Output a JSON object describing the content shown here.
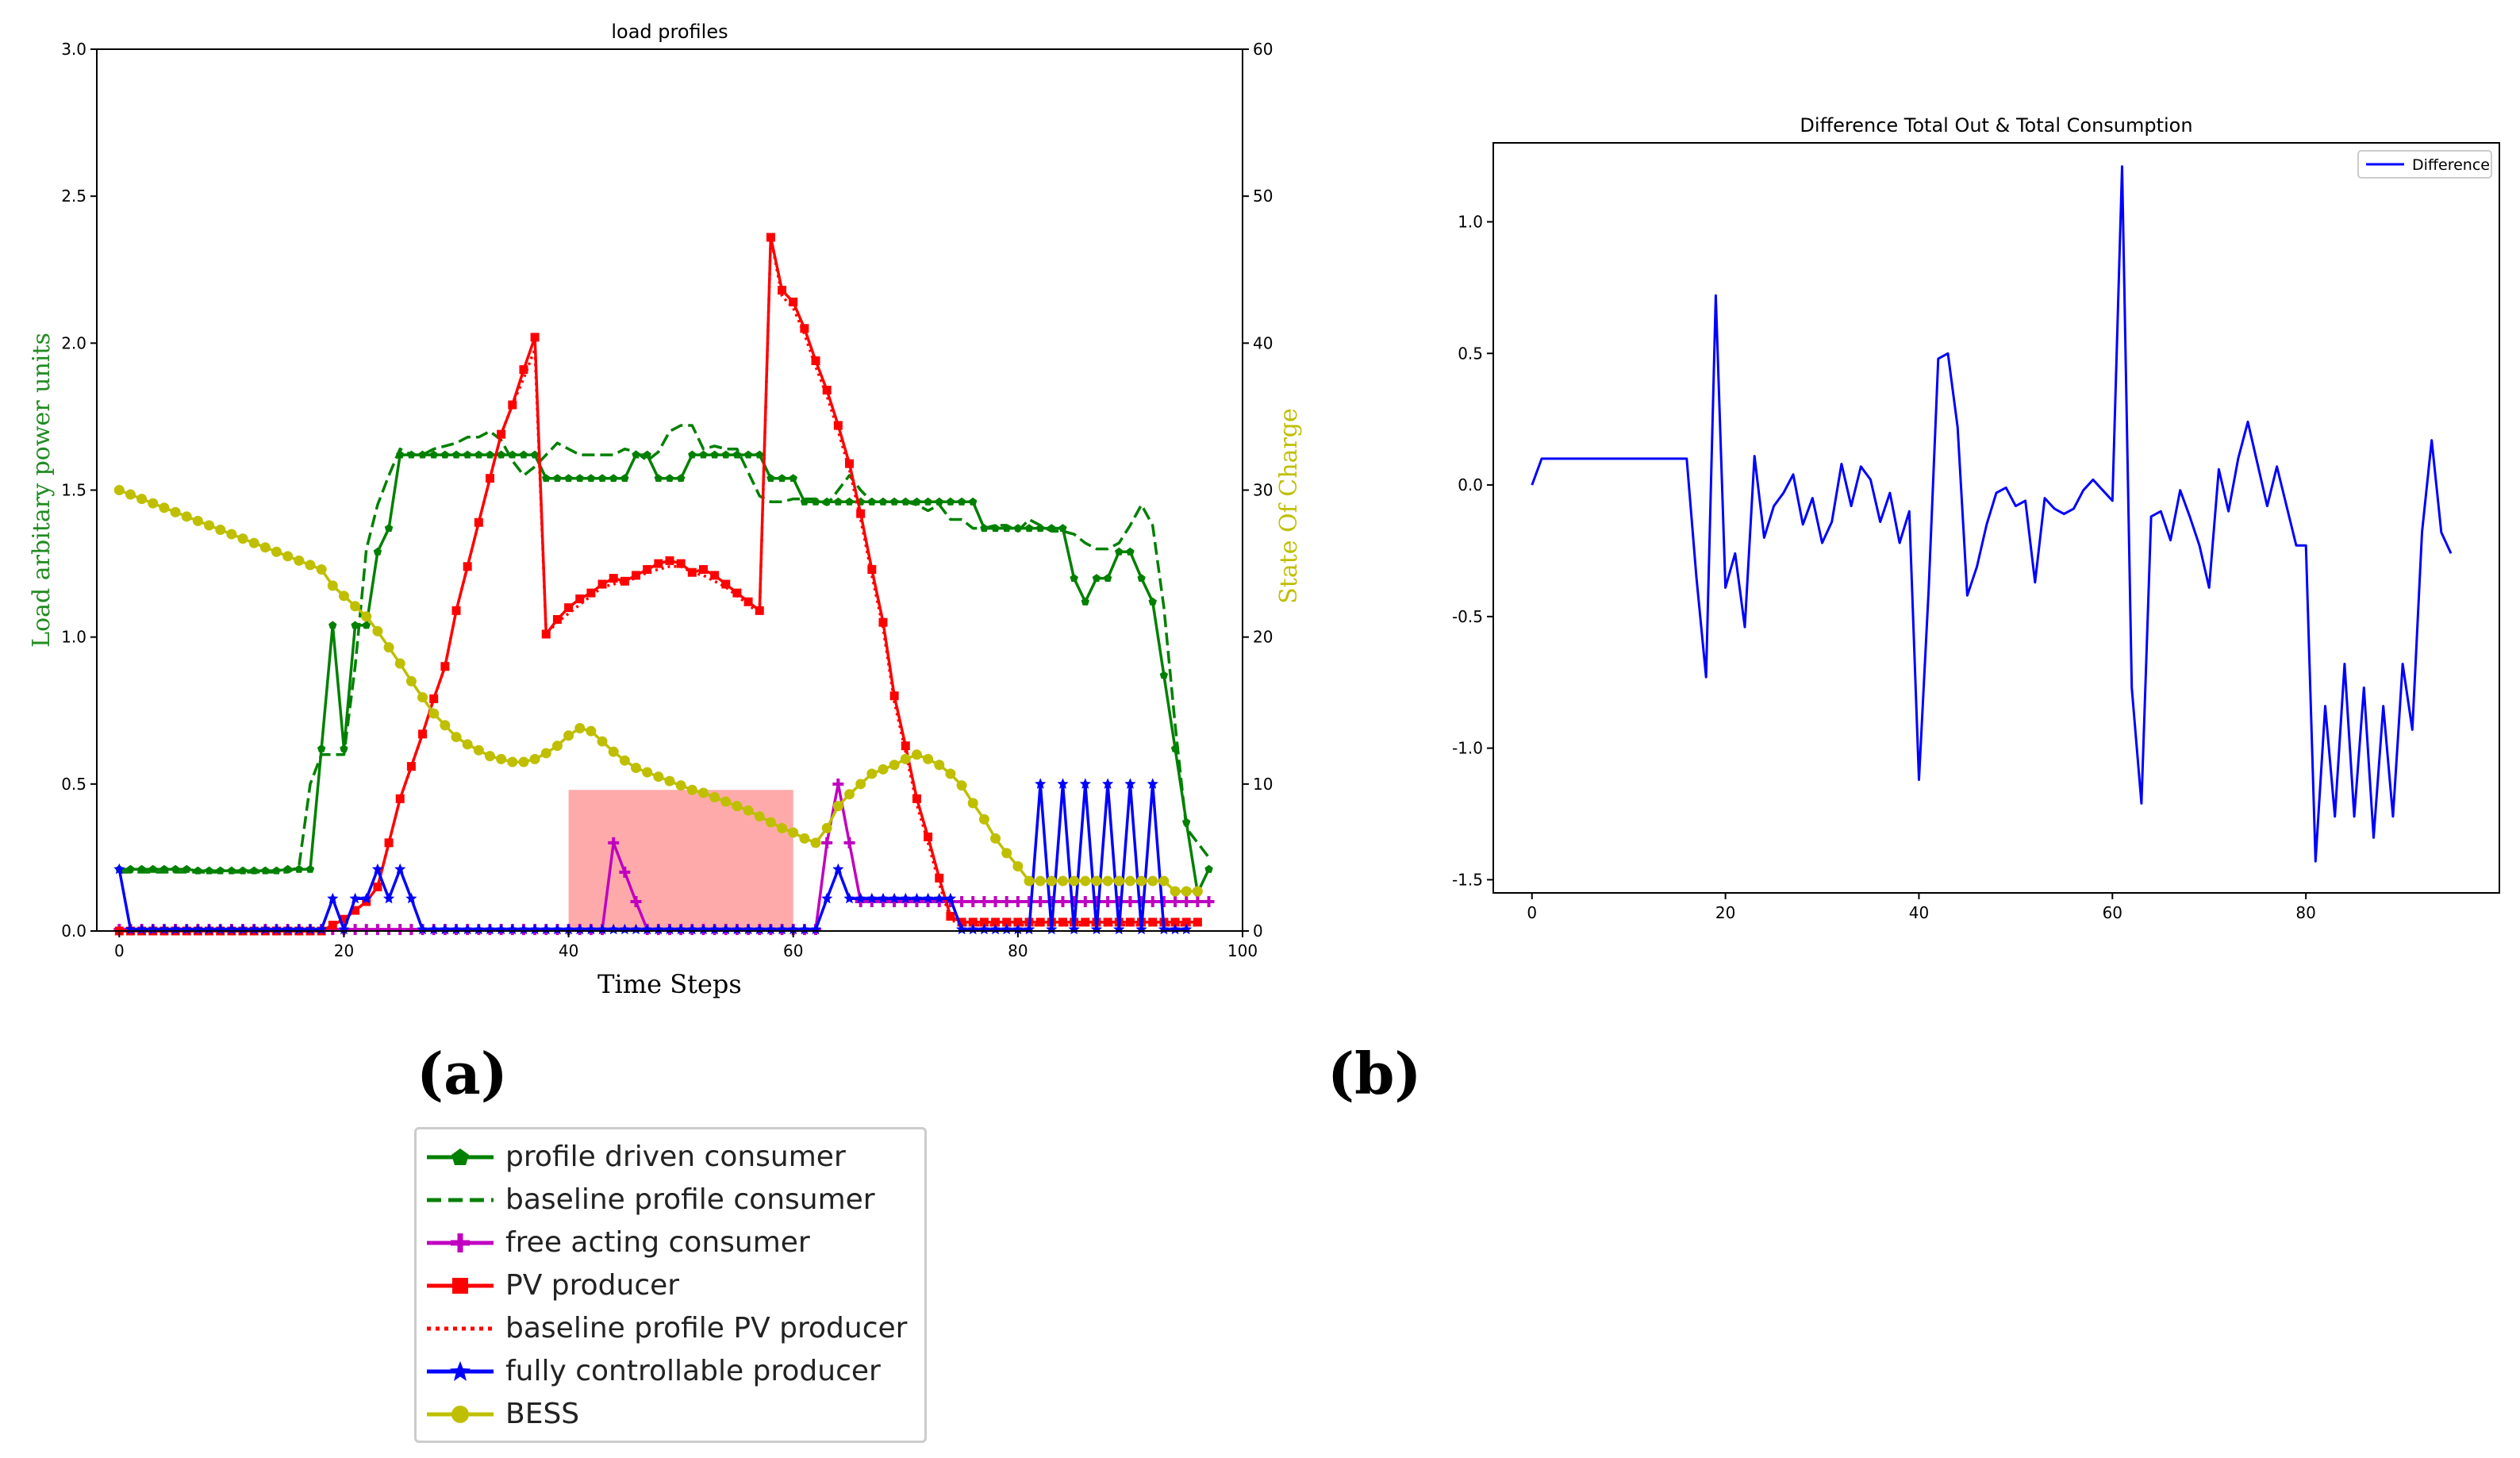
{
  "panels": {
    "a_label": "(a)",
    "b_label": "(b)"
  },
  "chart_data": [
    {
      "type": "line",
      "title": "load profiles",
      "xlabel": "Time Steps",
      "ylabel": "Load arbitary power units",
      "ylabel_right": "State Of Charge",
      "xlim": [
        -2,
        100
      ],
      "ylim": [
        0,
        3.0
      ],
      "ylim_right": [
        0,
        60
      ],
      "x_ticks": [
        0,
        20,
        40,
        60,
        80,
        100
      ],
      "y_ticks": [
        "0.0",
        "0.5",
        "1.0",
        "1.5",
        "2.0",
        "2.5",
        "3.0"
      ],
      "y_right_ticks": [
        0,
        10,
        20,
        30,
        40,
        50,
        60
      ],
      "highlight": {
        "x0": 40,
        "x1": 60,
        "y0": 0,
        "y1": 0.48,
        "color": "#ffaaaa"
      },
      "series": [
        {
          "name": "profile driven consumer",
          "color": "#008000",
          "style": "solid",
          "marker": "pentagon",
          "axis": "left",
          "values": [
            0.21,
            0.21,
            0.21,
            0.21,
            0.21,
            0.21,
            0.21,
            0.205,
            0.205,
            0.205,
            0.205,
            0.205,
            0.205,
            0.205,
            0.205,
            0.21,
            0.21,
            0.21,
            0.62,
            1.04,
            0.62,
            1.04,
            1.04,
            1.29,
            1.37,
            1.62,
            1.62,
            1.62,
            1.62,
            1.62,
            1.62,
            1.62,
            1.62,
            1.62,
            1.62,
            1.62,
            1.62,
            1.62,
            1.54,
            1.54,
            1.54,
            1.54,
            1.54,
            1.54,
            1.54,
            1.54,
            1.62,
            1.62,
            1.54,
            1.54,
            1.54,
            1.62,
            1.62,
            1.62,
            1.62,
            1.62,
            1.62,
            1.62,
            1.54,
            1.54,
            1.54,
            1.46,
            1.46,
            1.46,
            1.46,
            1.46,
            1.46,
            1.46,
            1.46,
            1.46,
            1.46,
            1.46,
            1.46,
            1.46,
            1.46,
            1.46,
            1.46,
            1.37,
            1.37,
            1.37,
            1.37,
            1.37,
            1.37,
            1.37,
            1.37,
            1.2,
            1.12,
            1.2,
            1.2,
            1.29,
            1.29,
            1.2,
            1.12,
            0.87,
            0.62,
            0.37,
            0.13,
            0.21
          ]
        },
        {
          "name": "baseline profile consumer",
          "color": "#008000",
          "style": "dashed",
          "marker": "none",
          "axis": "left",
          "values": [
            0.2,
            0.2,
            0.2,
            0.2,
            0.2,
            0.2,
            0.2,
            0.2,
            0.2,
            0.2,
            0.2,
            0.2,
            0.2,
            0.2,
            0.2,
            0.2,
            0.22,
            0.5,
            0.6,
            0.6,
            0.6,
            0.9,
            1.3,
            1.45,
            1.55,
            1.64,
            1.62,
            1.62,
            1.64,
            1.65,
            1.66,
            1.68,
            1.68,
            1.7,
            1.67,
            1.6,
            1.55,
            1.58,
            1.62,
            1.66,
            1.64,
            1.62,
            1.62,
            1.62,
            1.62,
            1.64,
            1.63,
            1.6,
            1.63,
            1.7,
            1.72,
            1.72,
            1.64,
            1.65,
            1.64,
            1.64,
            1.56,
            1.48,
            1.46,
            1.46,
            1.47,
            1.47,
            1.47,
            1.45,
            1.5,
            1.55,
            1.5,
            1.46,
            1.46,
            1.46,
            1.46,
            1.45,
            1.43,
            1.45,
            1.4,
            1.4,
            1.37,
            1.37,
            1.38,
            1.38,
            1.36,
            1.4,
            1.38,
            1.36,
            1.36,
            1.35,
            1.32,
            1.3,
            1.3,
            1.32,
            1.38,
            1.45,
            1.38,
            1.1,
            0.7,
            0.35,
            0.3,
            0.25
          ]
        },
        {
          "name": "free acting consumer",
          "color": "#c000c0",
          "style": "solid",
          "marker": "plus",
          "axis": "left",
          "values": [
            0.005,
            0.005,
            0.005,
            0.005,
            0.005,
            0.005,
            0.005,
            0.005,
            0.005,
            0.005,
            0.005,
            0.005,
            0.005,
            0.005,
            0.005,
            0.005,
            0.005,
            0.005,
            0.005,
            0.005,
            0.005,
            0.005,
            0.005,
            0.005,
            0.005,
            0.005,
            0.005,
            0.005,
            0.005,
            0.005,
            0.005,
            0.005,
            0.005,
            0.005,
            0.005,
            0.005,
            0.005,
            0.005,
            0.005,
            0.005,
            0.005,
            0.005,
            0.005,
            0.005,
            0.3,
            0.2,
            0.1,
            0.005,
            0.005,
            0.005,
            0.005,
            0.005,
            0.005,
            0.005,
            0.005,
            0.005,
            0.005,
            0.005,
            0.005,
            0.005,
            0.005,
            0.005,
            0.005,
            0.3,
            0.5,
            0.3,
            0.1,
            0.1,
            0.1,
            0.1,
            0.1,
            0.1,
            0.1,
            0.1,
            0.1,
            0.1,
            0.1,
            0.1,
            0.1,
            0.1,
            0.1,
            0.1,
            0.1,
            0.1,
            0.1,
            0.1,
            0.1,
            0.1,
            0.1,
            0.1,
            0.1,
            0.1,
            0.1,
            0.1,
            0.1,
            0.1,
            0.1,
            0.1
          ]
        },
        {
          "name": "PV producer",
          "color": "#ff0000",
          "style": "solid",
          "marker": "square",
          "axis": "left",
          "values": [
            0,
            0,
            0,
            0,
            0,
            0,
            0,
            0,
            0,
            0,
            0,
            0,
            0,
            0,
            0,
            0,
            0,
            0,
            0,
            0.02,
            0.04,
            0.07,
            0.1,
            0.15,
            0.3,
            0.45,
            0.56,
            0.67,
            0.79,
            0.9,
            1.09,
            1.24,
            1.39,
            1.54,
            1.69,
            1.79,
            1.91,
            2.02,
            1.01,
            1.06,
            1.1,
            1.13,
            1.15,
            1.18,
            1.2,
            1.19,
            1.21,
            1.23,
            1.25,
            1.26,
            1.25,
            1.22,
            1.23,
            1.21,
            1.18,
            1.15,
            1.12,
            1.09,
            2.36,
            2.18,
            2.14,
            2.05,
            1.94,
            1.84,
            1.72,
            1.59,
            1.42,
            1.23,
            1.05,
            0.8,
            0.63,
            0.45,
            0.32,
            0.18,
            0.05,
            0.03,
            0.03,
            0.03,
            0.03,
            0.03,
            0.03,
            0.03,
            0.03,
            0.03,
            0.03,
            0.03,
            0.03,
            0.03,
            0.03,
            0.03,
            0.03,
            0.03,
            0.03,
            0.03,
            0.03,
            0.03,
            0.03
          ]
        },
        {
          "name": "baseline profile PV producer",
          "color": "#ff0000",
          "style": "dotted",
          "marker": "none",
          "axis": "left",
          "values": [
            0,
            0,
            0,
            0,
            0,
            0,
            0,
            0,
            0,
            0,
            0,
            0,
            0,
            0,
            0,
            0,
            0,
            0,
            0,
            0.02,
            0.04,
            0.07,
            0.1,
            0.15,
            0.3,
            0.45,
            0.56,
            0.67,
            0.79,
            0.9,
            1.09,
            1.24,
            1.39,
            1.54,
            1.69,
            1.79,
            1.88,
            1.98,
            1.01,
            1.05,
            1.08,
            1.11,
            1.14,
            1.17,
            1.18,
            1.19,
            1.2,
            1.22,
            1.23,
            1.24,
            1.24,
            1.22,
            1.21,
            1.19,
            1.17,
            1.14,
            1.11,
            1.08,
            2.36,
            2.16,
            2.12,
            2.03,
            1.92,
            1.82,
            1.7,
            1.57,
            1.4,
            1.21,
            1.03,
            0.78,
            0.61,
            0.43,
            0.3,
            0.16,
            0.04,
            0.02,
            0.02,
            0.02,
            0.02,
            0.02,
            0.02,
            0.02,
            0.02,
            0.02,
            0.02,
            0.02,
            0.02,
            0.02,
            0.02,
            0.02,
            0.02,
            0.02,
            0.02,
            0.02,
            0.02,
            0.02,
            0.02
          ]
        },
        {
          "name": "fully controllable producer",
          "color": "#0000ff",
          "style": "solid",
          "marker": "star",
          "axis": "left",
          "values": [
            0.21,
            0.005,
            0.005,
            0.005,
            0.005,
            0.005,
            0.005,
            0.005,
            0.005,
            0.005,
            0.005,
            0.005,
            0.005,
            0.005,
            0.005,
            0.005,
            0.005,
            0.005,
            0.005,
            0.11,
            0.005,
            0.11,
            0.11,
            0.21,
            0.11,
            0.21,
            0.11,
            0.005,
            0.005,
            0.005,
            0.005,
            0.005,
            0.005,
            0.005,
            0.005,
            0.005,
            0.005,
            0.005,
            0.005,
            0.005,
            0.005,
            0.005,
            0.005,
            0.005,
            0.005,
            0.005,
            0.005,
            0.005,
            0.005,
            0.005,
            0.005,
            0.005,
            0.005,
            0.005,
            0.005,
            0.005,
            0.005,
            0.005,
            0.005,
            0.005,
            0.005,
            0.005,
            0.005,
            0.11,
            0.21,
            0.11,
            0.11,
            0.11,
            0.11,
            0.11,
            0.11,
            0.11,
            0.11,
            0.11,
            0.11,
            0.005,
            0.005,
            0.005,
            0.005,
            0.005,
            0.005,
            0.005,
            0.5,
            0.005,
            0.5,
            0.005,
            0.5,
            0.005,
            0.5,
            0.005,
            0.5,
            0.005,
            0.5,
            0.005,
            0.005,
            0.005
          ]
        },
        {
          "name": "BESS",
          "color": "#bfbf00",
          "style": "solid",
          "marker": "circle",
          "axis": "right",
          "values": [
            30,
            29.7,
            29.4,
            29.1,
            28.8,
            28.5,
            28.2,
            27.9,
            27.6,
            27.3,
            27.0,
            26.7,
            26.4,
            26.1,
            25.8,
            25.5,
            25.2,
            24.9,
            24.6,
            23.5,
            22.8,
            22.1,
            21.4,
            20.4,
            19.3,
            18.2,
            17.0,
            15.9,
            14.8,
            14.0,
            13.2,
            12.7,
            12.3,
            11.9,
            11.7,
            11.5,
            11.5,
            11.7,
            12.1,
            12.6,
            13.3,
            13.8,
            13.6,
            12.9,
            12.2,
            11.6,
            11.1,
            10.8,
            10.5,
            10.2,
            9.9,
            9.6,
            9.4,
            9.1,
            8.8,
            8.5,
            8.2,
            7.8,
            7.4,
            7.0,
            6.7,
            6.3,
            6.0,
            7.0,
            8.5,
            9.3,
            10.0,
            10.7,
            11.0,
            11.3,
            11.7,
            12.0,
            11.7,
            11.3,
            10.7,
            9.9,
            8.7,
            7.6,
            6.3,
            5.3,
            4.4,
            3.4,
            3.4,
            3.4,
            3.4,
            3.4,
            3.4,
            3.4,
            3.4,
            3.4,
            3.4,
            3.4,
            3.4,
            3.4,
            2.7,
            2.7,
            2.7
          ]
        }
      ],
      "legend": {
        "placement": "below",
        "entries": [
          "profile driven consumer",
          "baseline profile consumer",
          "free acting consumer",
          "PV producer",
          "baseline profile PV producer",
          "fully controllable producer",
          "BESS"
        ]
      }
    },
    {
      "type": "line",
      "title": "Difference Total Out & Total Consumption",
      "xlabel": "",
      "ylabel": "",
      "xlim": [
        -4,
        100
      ],
      "ylim": [
        -1.55,
        1.3
      ],
      "x_ticks": [
        0,
        20,
        40,
        60,
        80
      ],
      "y_ticks": [
        "-1.5",
        "-1.0",
        "-0.5",
        "0.0",
        "0.5",
        "1.0"
      ],
      "series": [
        {
          "name": "Difference",
          "color": "#0000ff",
          "style": "solid",
          "values": [
            0.0,
            0.1,
            0.1,
            0.1,
            0.1,
            0.1,
            0.1,
            0.1,
            0.1,
            0.1,
            0.1,
            0.1,
            0.1,
            0.1,
            0.1,
            0.1,
            0.1,
            -0.35,
            -0.73,
            0.72,
            -0.39,
            -0.26,
            -0.54,
            0.11,
            -0.2,
            -0.08,
            -0.03,
            0.04,
            -0.15,
            -0.05,
            -0.22,
            -0.14,
            0.08,
            -0.08,
            0.07,
            0.02,
            -0.14,
            -0.03,
            -0.22,
            -0.1,
            -1.12,
            -0.4,
            0.48,
            0.5,
            0.22,
            -0.42,
            -0.31,
            -0.15,
            -0.03,
            -0.01,
            -0.08,
            -0.06,
            -0.37,
            -0.05,
            -0.09,
            -0.11,
            -0.09,
            -0.02,
            0.02,
            -0.02,
            -0.06,
            1.21,
            -0.77,
            -1.21,
            -0.12,
            -0.1,
            -0.21,
            -0.02,
            -0.12,
            -0.23,
            -0.39,
            0.06,
            -0.1,
            0.1,
            0.24,
            0.08,
            -0.08,
            0.07,
            -0.08,
            -0.23,
            -0.23,
            -1.43,
            -0.84,
            -1.26,
            -0.68,
            -1.26,
            -0.77,
            -1.34,
            -0.84,
            -1.26,
            -0.68,
            -0.93,
            -0.18,
            0.17,
            -0.18,
            -0.26
          ]
        }
      ],
      "legend": {
        "placement": "top-right",
        "entries": [
          "Difference"
        ]
      }
    }
  ]
}
